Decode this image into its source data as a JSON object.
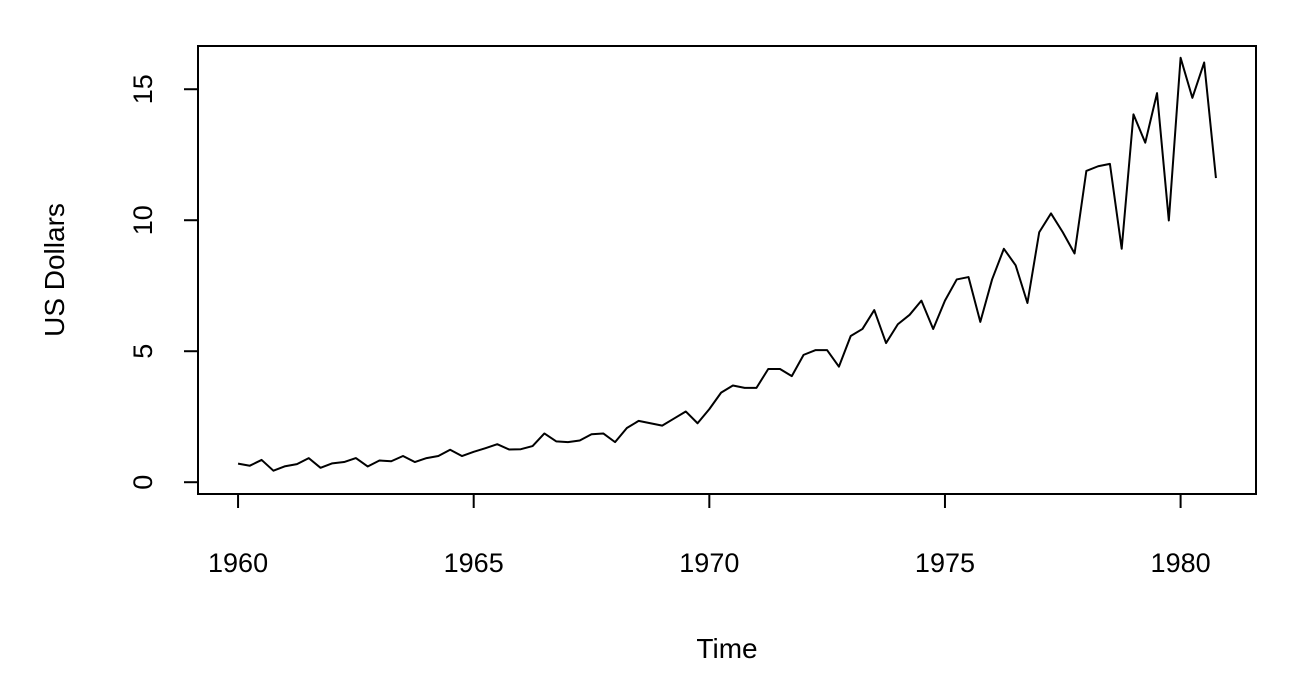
{
  "chart_data": {
    "type": "line",
    "title": "",
    "xlabel": "Time",
    "ylabel": "US Dollars",
    "xlim": [
      1959.15,
      1981.6
    ],
    "ylim": [
      -0.45,
      16.65
    ],
    "grid": false,
    "legend": "none",
    "line_color": "#000000",
    "x_ticks": [
      1960,
      1965,
      1970,
      1975,
      1980
    ],
    "x_tick_labels": [
      "1960",
      "1965",
      "1970",
      "1975",
      "1980"
    ],
    "y_ticks": [
      0,
      5,
      10,
      15
    ],
    "y_tick_labels": [
      "0",
      "5",
      "10",
      "15"
    ],
    "x_start": 1960.0,
    "x_step": 0.25,
    "series": [
      {
        "values": [
          0.71,
          0.63,
          0.85,
          0.44,
          0.61,
          0.69,
          0.92,
          0.55,
          0.72,
          0.77,
          0.92,
          0.6,
          0.83,
          0.8,
          1.0,
          0.77,
          0.92,
          1.0,
          1.24,
          1.0,
          1.16,
          1.3,
          1.45,
          1.25,
          1.26,
          1.38,
          1.86,
          1.56,
          1.53,
          1.59,
          1.83,
          1.86,
          1.53,
          2.07,
          2.34,
          2.25,
          2.16,
          2.43,
          2.7,
          2.25,
          2.79,
          3.42,
          3.69,
          3.6,
          3.6,
          4.32,
          4.32,
          4.05,
          4.86,
          5.04,
          5.04,
          4.41,
          5.58,
          5.85,
          6.57,
          5.31,
          6.03,
          6.39,
          6.93,
          5.85,
          6.93,
          7.74,
          7.83,
          6.12,
          7.74,
          8.91,
          8.28,
          6.84,
          9.54,
          10.26,
          9.54,
          8.73,
          11.88,
          12.06,
          12.15,
          8.91,
          14.04,
          12.96,
          14.85,
          9.99,
          16.2,
          14.67,
          16.02,
          11.61
        ]
      }
    ]
  }
}
